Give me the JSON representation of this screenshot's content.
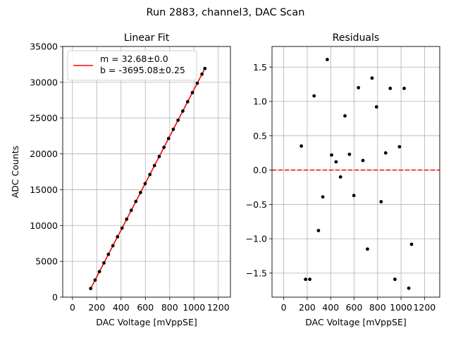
{
  "figure": {
    "suptitle": "Run 2883, channel3, DAC Scan"
  },
  "colors": {
    "fit_line": "#ff0000",
    "zero_line": "#ff0000",
    "points": "#000000",
    "grid": "#b0b0b0"
  },
  "chart_data": [
    {
      "type": "scatter",
      "title": "Linear Fit",
      "xlabel": "DAC Voltage [mVppSE]",
      "ylabel": "ADC Counts",
      "xlim": [
        -80,
        1300
      ],
      "ylim": [
        0,
        35000
      ],
      "xticks": [
        0,
        200,
        400,
        600,
        800,
        1000,
        1200
      ],
      "xtick_labels": [
        "0",
        "200",
        "400",
        "600",
        "800",
        "1000",
        "1200"
      ],
      "yticks": [
        0,
        5000,
        10000,
        15000,
        20000,
        25000,
        30000,
        35000
      ],
      "ytick_labels": [
        "0",
        "5000",
        "10000",
        "15000",
        "20000",
        "25000",
        "30000",
        "35000"
      ],
      "grid": true,
      "legend_position": "top-left",
      "legend_lines": [
        "m = 32.68±0.0",
        "b = -3695.08±0.25"
      ],
      "fit": {
        "slope": 32.68,
        "intercept": -3695.08,
        "x_range": [
          150,
          1090
        ]
      },
      "series": [
        {
          "x": [
            150,
            186,
            222,
            259,
            296,
            333,
            371,
            408,
            446,
            484,
            522,
            560,
            598,
            637,
            675,
            714,
            753,
            791,
            830,
            869,
            908,
            948,
            987,
            1027,
            1066,
            1090
          ],
          "y": [
            1207,
            2384,
            3561,
            4771,
            5979,
            7188,
            8430,
            9638,
            10880,
            12122,
            13364,
            14606,
            15848,
            17122,
            18364,
            19638,
            20913,
            22154,
            23429,
            24704,
            25978,
            27285,
            28560,
            29867,
            31142,
            31927
          ]
        }
      ]
    },
    {
      "type": "scatter",
      "title": "Residuals",
      "xlabel": "DAC Voltage [mVppSE]",
      "ylabel": "",
      "xlim": [
        -100,
        1330
      ],
      "ylim": [
        -1.85,
        1.8
      ],
      "xticks": [
        0,
        200,
        400,
        600,
        800,
        1000,
        1200
      ],
      "xtick_labels": [
        "0",
        "200",
        "400",
        "600",
        "800",
        "1000",
        "1200"
      ],
      "yticks": [
        -1.5,
        -1.0,
        -0.5,
        0.0,
        0.5,
        1.0,
        1.5
      ],
      "ytick_labels": [
        "−1.5",
        "−1.0",
        "−0.5",
        "0.0",
        "0.5",
        "1.0",
        "1.5"
      ],
      "grid": true,
      "reference_line": 0,
      "series": [
        {
          "x": [
            150,
            186,
            222,
            259,
            296,
            333,
            371,
            408,
            446,
            484,
            522,
            560,
            598,
            637,
            675,
            714,
            753,
            791,
            830,
            869,
            908,
            948,
            987,
            1027,
            1066,
            1090
          ],
          "y": [
            0.35,
            -1.59,
            -1.59,
            1.08,
            -0.88,
            -0.39,
            1.61,
            0.22,
            0.12,
            -0.1,
            0.79,
            0.23,
            -0.37,
            1.2,
            0.14,
            -1.15,
            1.34,
            0.92,
            -0.46,
            0.25,
            1.19,
            -1.59,
            0.34,
            1.19,
            -1.72,
            -1.08
          ]
        }
      ]
    }
  ]
}
